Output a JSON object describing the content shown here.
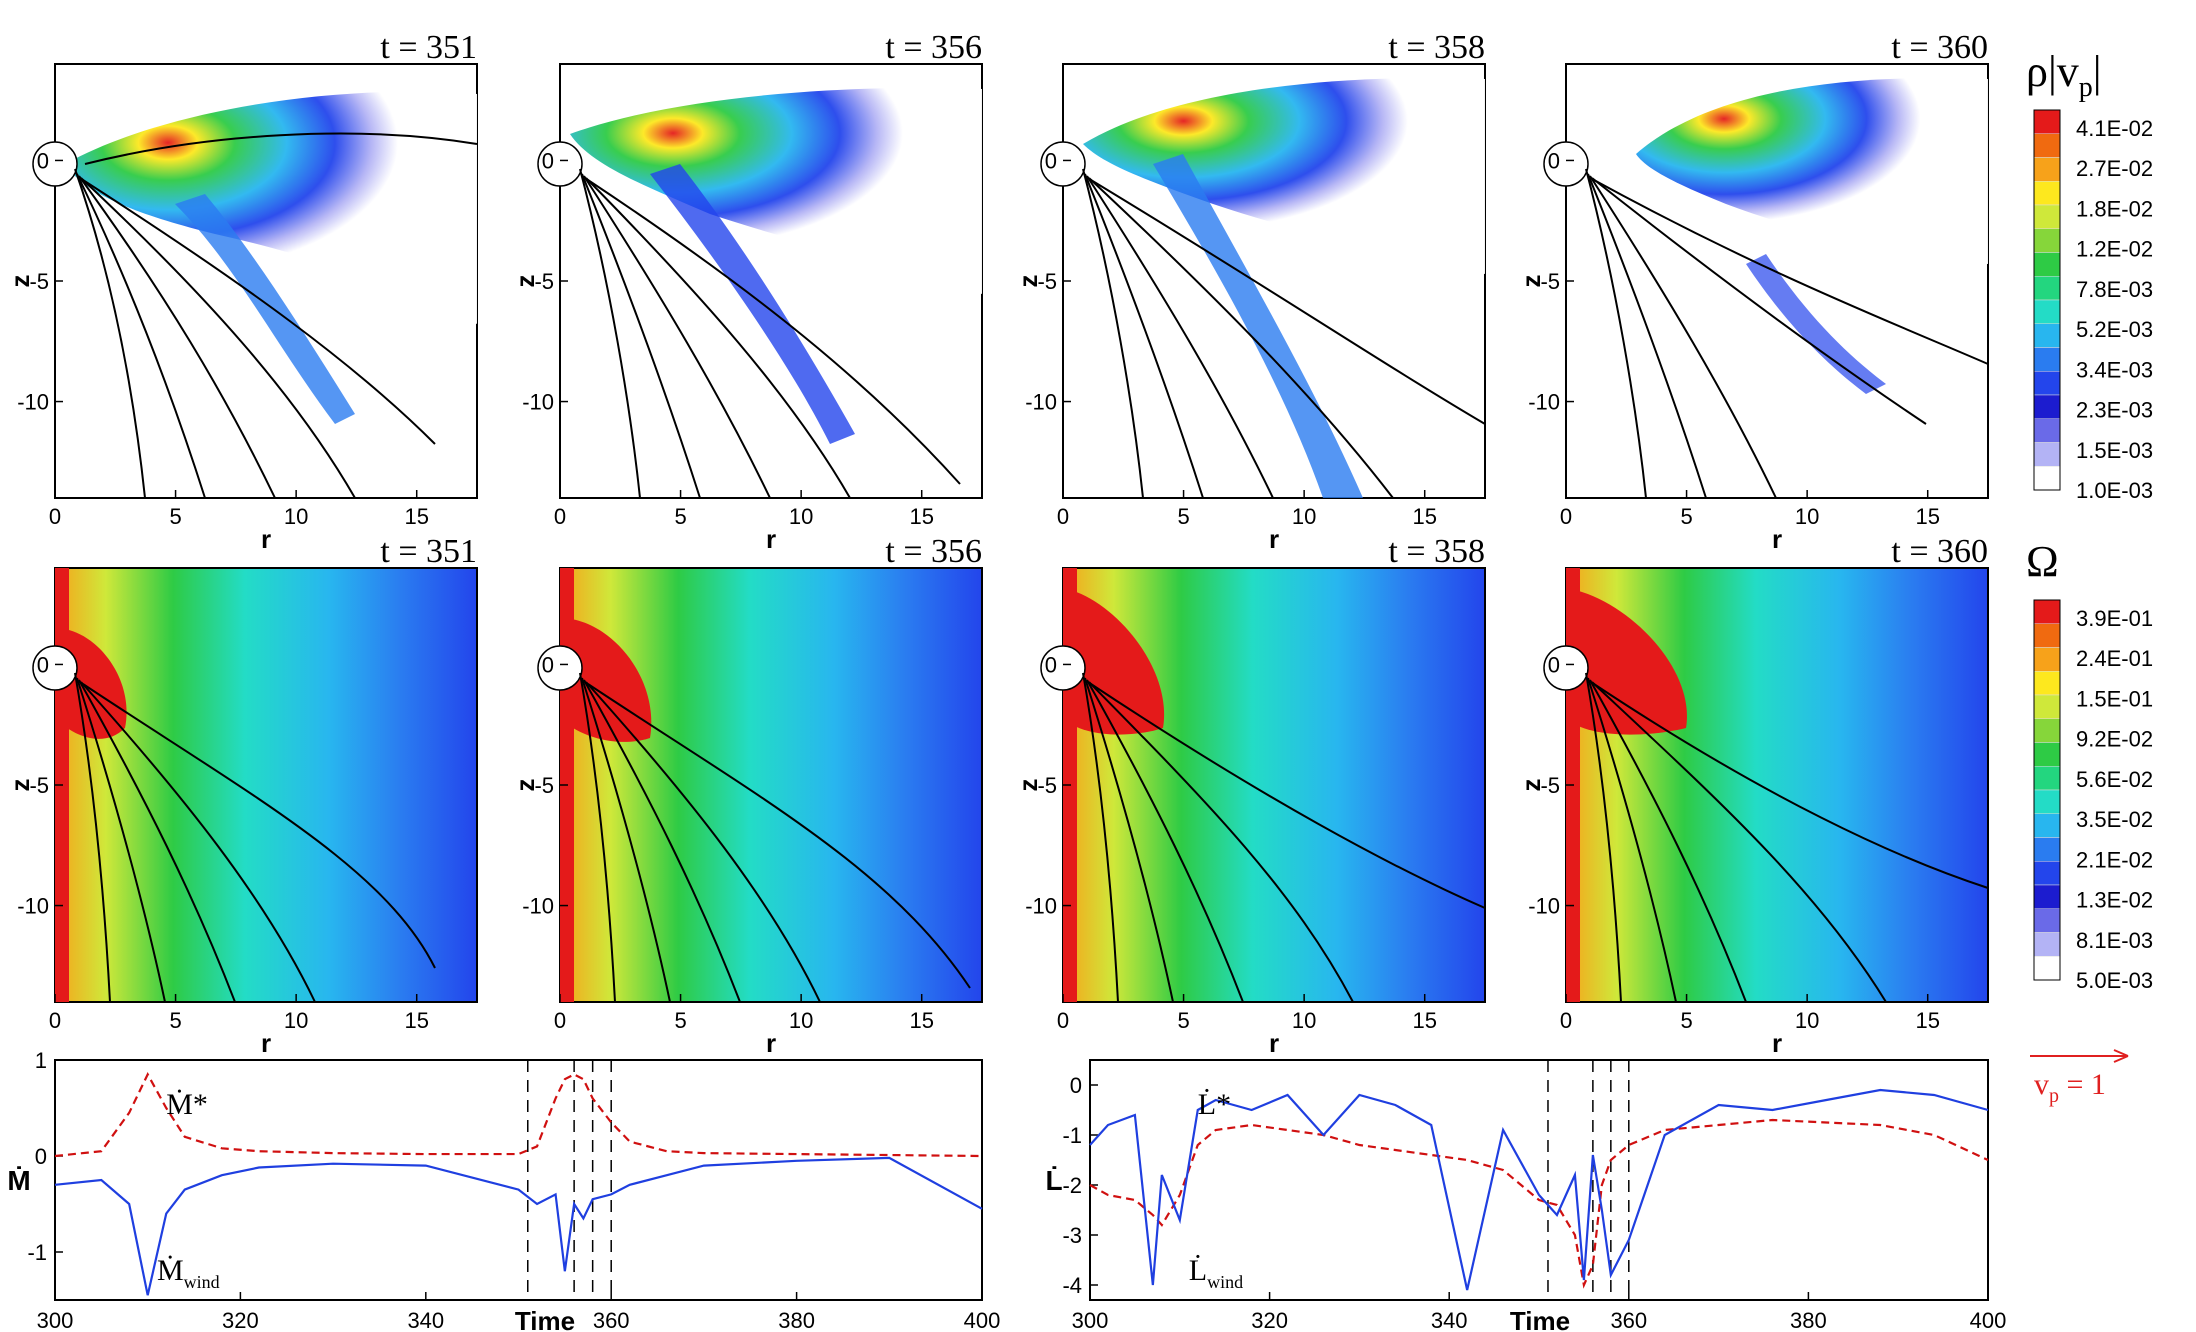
{
  "panel_times": [
    "t = 351",
    "t = 356",
    "t = 358",
    "t = 360"
  ],
  "panel_axes": {
    "xlabel": "r",
    "ylabel": "z",
    "xticks": [
      "0",
      "5",
      "10",
      "15"
    ],
    "yticks": [
      "0",
      "-5",
      "-10"
    ],
    "xlim": [
      0,
      17.5
    ],
    "ylim": [
      -14,
      4
    ]
  },
  "colorbars": [
    {
      "title_main": "ρ|v",
      "title_sub": "p",
      "title_end": "|",
      "labels": [
        "4.1E-02",
        "2.7E-02",
        "1.8E-02",
        "1.2E-02",
        "7.8E-03",
        "5.2E-03",
        "3.4E-03",
        "2.3E-03",
        "1.5E-03",
        "1.0E-03"
      ]
    },
    {
      "title_main": "Ω",
      "title_sub": "",
      "title_end": "",
      "labels": [
        "3.9E-01",
        "2.4E-01",
        "1.5E-01",
        "9.2E-02",
        "5.6E-02",
        "3.5E-02",
        "2.1E-02",
        "1.3E-02",
        "8.1E-03",
        "5.0E-03"
      ]
    }
  ],
  "colors": {
    "scale": [
      "#e41a1a",
      "#f06a10",
      "#f7a21a",
      "#fde81e",
      "#cfe83a",
      "#86d63a",
      "#2ecb45",
      "#23d67f",
      "#23dcc6",
      "#28b6ef",
      "#2a7cf0",
      "#2345ec",
      "#1c1ccf",
      "#6a6ae8",
      "#b3b3f5",
      "#ffffff"
    ],
    "star_series": "#d01010",
    "wind_series": "#1f3fe0",
    "arrow": "#e02020",
    "field_line": "#000000"
  },
  "vector_legend": {
    "label_main": "v",
    "label_sub": "p",
    "label_end": " = 1"
  },
  "time_axis": {
    "label": "Time",
    "ticks": [
      "300",
      "320",
      "340",
      "360",
      "380",
      "400"
    ],
    "markers": [
      351,
      356,
      358,
      360
    ]
  },
  "chart_data": [
    {
      "type": "line",
      "ylabel": "Ṁ",
      "xlim": [
        300,
        400
      ],
      "ylim": [
        -1.5,
        1.0
      ],
      "yticks": [
        "1",
        "0",
        "-1"
      ],
      "annotations": {
        "star": "Ṁ*",
        "wind_main": "Ṁ",
        "wind_sub": "wind"
      },
      "x": [
        300,
        305,
        308,
        310,
        312,
        314,
        318,
        322,
        330,
        340,
        350,
        352,
        354,
        355,
        356,
        357,
        358,
        360,
        362,
        366,
        370,
        380,
        390,
        400
      ],
      "series": [
        {
          "values": [
            0.0,
            0.05,
            0.45,
            0.85,
            0.5,
            0.2,
            0.08,
            0.05,
            0.03,
            0.02,
            0.02,
            0.1,
            0.6,
            0.8,
            0.85,
            0.8,
            0.6,
            0.35,
            0.15,
            0.05,
            0.03,
            0.02,
            0.01,
            0.0
          ]
        },
        {
          "values": [
            -0.3,
            -0.25,
            -0.5,
            -1.45,
            -0.6,
            -0.35,
            -0.2,
            -0.12,
            -0.08,
            -0.1,
            -0.35,
            -0.5,
            -0.4,
            -1.2,
            -0.5,
            -0.65,
            -0.45,
            -0.4,
            -0.3,
            -0.2,
            -0.1,
            -0.05,
            -0.02,
            -0.55
          ]
        }
      ]
    },
    {
      "type": "line",
      "ylabel": "L̇",
      "xlim": [
        300,
        400
      ],
      "ylim": [
        -4.3,
        0.5
      ],
      "yticks": [
        "0",
        "-1",
        "-2",
        "-3",
        "-4"
      ],
      "annotations": {
        "star": "L̇*",
        "wind_main": "L̇",
        "wind_sub": "wind"
      },
      "x": [
        300,
        302,
        305,
        307,
        308,
        310,
        312,
        314,
        318,
        322,
        326,
        330,
        334,
        338,
        342,
        346,
        350,
        352,
        354,
        355,
        356,
        357,
        358,
        360,
        364,
        370,
        376,
        382,
        388,
        394,
        400
      ],
      "series": [
        {
          "values": [
            -2.0,
            -2.2,
            -2.3,
            -2.6,
            -2.8,
            -2.2,
            -1.2,
            -0.9,
            -0.8,
            -0.9,
            -1.0,
            -1.2,
            -1.3,
            -1.4,
            -1.5,
            -1.7,
            -2.3,
            -2.4,
            -3.0,
            -4.0,
            -3.6,
            -2.0,
            -1.5,
            -1.2,
            -0.9,
            -0.8,
            -0.7,
            -0.75,
            -0.8,
            -1.0,
            -1.5
          ]
        },
        {
          "values": [
            -1.2,
            -0.8,
            -0.6,
            -4.0,
            -1.8,
            -2.7,
            -0.5,
            -0.3,
            -0.5,
            -0.2,
            -1.0,
            -0.2,
            -0.4,
            -0.8,
            -4.1,
            -0.9,
            -2.2,
            -2.6,
            -1.8,
            -3.9,
            -1.4,
            -2.5,
            -3.8,
            -3.1,
            -1.0,
            -0.4,
            -0.5,
            -0.3,
            -0.1,
            -0.2,
            -0.5
          ]
        }
      ]
    }
  ]
}
